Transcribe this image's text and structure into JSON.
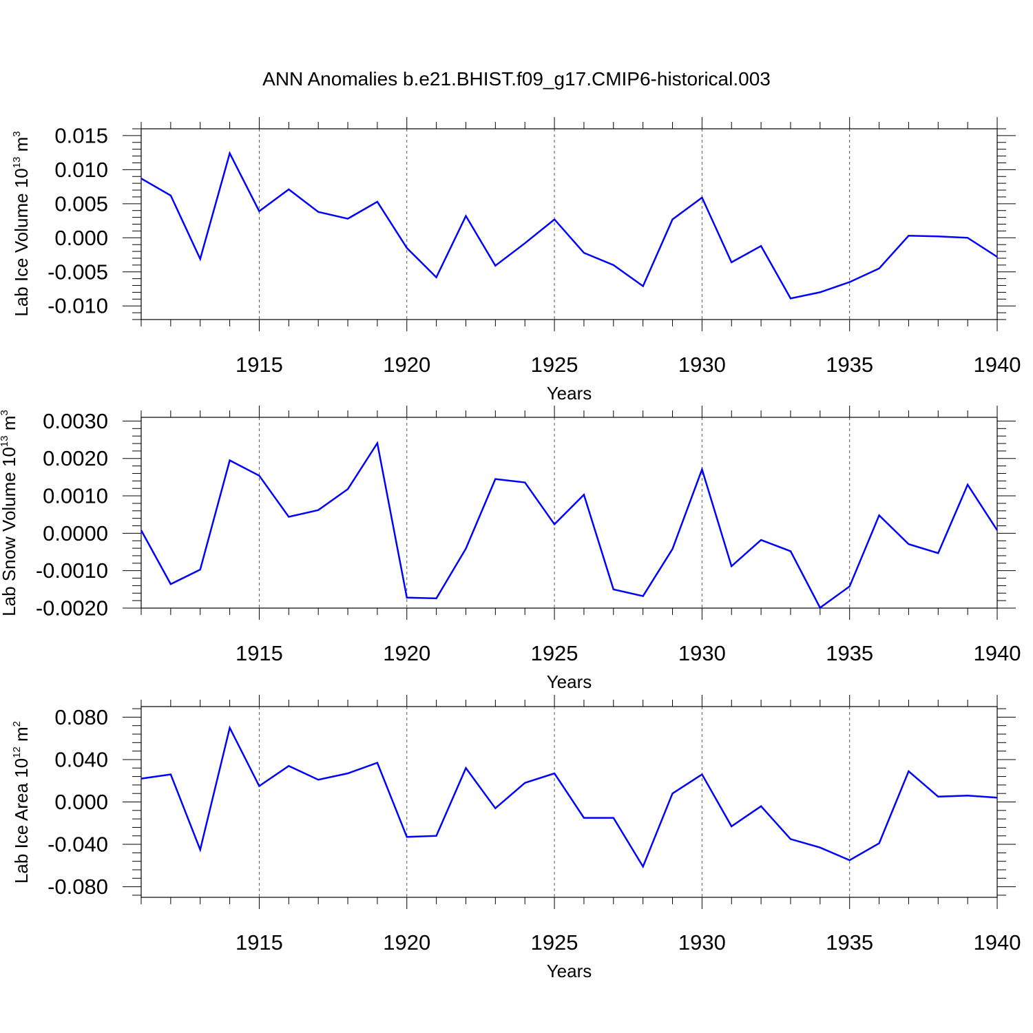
{
  "title": "ANN Anomalies b.e21.BHIST.f09_g17.CMIP6-historical.003",
  "line_color": "#0000ff",
  "chart_data": [
    {
      "type": "line",
      "ylabel": {
        "main": "Lab Ice Volume 10",
        "exp": "13",
        "unit": " m",
        "unit_exp": "3"
      },
      "xlabel": "Years",
      "xlim": [
        1911,
        1940
      ],
      "ylim": [
        -0.012,
        0.016
      ],
      "yticks": [
        0.015,
        0.01,
        0.005,
        0.0,
        -0.005,
        -0.01
      ],
      "ytick_labels": [
        "0.015",
        "0.010",
        "0.005",
        "0.000",
        "-0.005",
        "-0.010"
      ],
      "xticks": [
        1915,
        1920,
        1925,
        1930,
        1935,
        1940
      ],
      "xtick_labels": [
        "1915",
        "1920",
        "1925",
        "1930",
        "1935",
        "1940"
      ],
      "grid": "x dashed",
      "x": [
        1911,
        1912,
        1913,
        1914,
        1915,
        1916,
        1917,
        1918,
        1919,
        1920,
        1921,
        1922,
        1923,
        1924,
        1925,
        1926,
        1927,
        1928,
        1929,
        1930,
        1931,
        1932,
        1933,
        1934,
        1935,
        1936,
        1937,
        1938,
        1939,
        1940
      ],
      "series": [
        {
          "values": [
            0.0087,
            0.0062,
            -0.0031,
            0.0124,
            0.0039,
            0.0071,
            0.0038,
            0.0028,
            0.0053,
            -0.0015,
            -0.0058,
            0.0032,
            -0.0041,
            -0.0008,
            0.0027,
            -0.0022,
            -0.004,
            -0.0071,
            0.0027,
            0.0059,
            -0.0036,
            -0.0012,
            -0.0089,
            -0.008,
            -0.0065,
            -0.0045,
            0.0003,
            0.0002,
            0.0,
            -0.0028
          ]
        }
      ]
    },
    {
      "type": "line",
      "ylabel": {
        "main": "Lab Snow Volume 10",
        "exp": "13",
        "unit": " m",
        "unit_exp": "3"
      },
      "xlabel": "Years",
      "xlim": [
        1911,
        1940
      ],
      "ylim": [
        -0.002,
        0.0031
      ],
      "yticks": [
        0.003,
        0.002,
        0.001,
        0.0,
        -0.001,
        -0.002
      ],
      "ytick_labels": [
        "0.0030",
        "0.0020",
        "0.0010",
        "0.0000",
        "-0.0010",
        "-0.0020"
      ],
      "xticks": [
        1915,
        1920,
        1925,
        1930,
        1935,
        1940
      ],
      "xtick_labels": [
        "1915",
        "1920",
        "1925",
        "1930",
        "1935",
        "1940"
      ],
      "grid": "x dashed",
      "x": [
        1911,
        1912,
        1913,
        1914,
        1915,
        1916,
        1917,
        1918,
        1919,
        1920,
        1921,
        1922,
        1923,
        1924,
        1925,
        1926,
        1927,
        1928,
        1929,
        1930,
        1931,
        1932,
        1933,
        1934,
        1935,
        1936,
        1937,
        1938,
        1939,
        1940
      ],
      "series": [
        {
          "values": [
            8e-05,
            -0.00136,
            -0.00097,
            0.00195,
            0.00154,
            0.00044,
            0.00062,
            0.00118,
            0.00241,
            -0.00172,
            -0.00174,
            -0.00041,
            0.00145,
            0.00136,
            0.00024,
            0.00103,
            -0.0015,
            -0.00168,
            -0.00042,
            0.00171,
            -0.00088,
            -0.00018,
            -0.00048,
            -0.00199,
            -0.00142,
            0.00048,
            -0.00029,
            -0.00053,
            0.0013,
            8e-05
          ]
        }
      ]
    },
    {
      "type": "line",
      "ylabel": {
        "main": "Lab Ice Area 10",
        "exp": "12",
        "unit": " m",
        "unit_exp": "2"
      },
      "xlabel": "Years",
      "xlim": [
        1911,
        1940
      ],
      "ylim": [
        -0.09,
        0.09
      ],
      "yticks": [
        0.08,
        0.04,
        0.0,
        -0.04,
        -0.08
      ],
      "ytick_labels": [
        "0.080",
        "0.040",
        "0.000",
        "-0.040",
        "-0.080"
      ],
      "xticks": [
        1915,
        1920,
        1925,
        1930,
        1935,
        1940
      ],
      "xtick_labels": [
        "1915",
        "1920",
        "1925",
        "1930",
        "1935",
        "1940"
      ],
      "grid": "x dashed",
      "x": [
        1911,
        1912,
        1913,
        1914,
        1915,
        1916,
        1917,
        1918,
        1919,
        1920,
        1921,
        1922,
        1923,
        1924,
        1925,
        1926,
        1927,
        1928,
        1929,
        1930,
        1931,
        1932,
        1933,
        1934,
        1935,
        1936,
        1937,
        1938,
        1939,
        1940
      ],
      "series": [
        {
          "values": [
            0.022,
            0.026,
            -0.045,
            0.07,
            0.015,
            0.034,
            0.021,
            0.027,
            0.037,
            -0.033,
            -0.032,
            0.032,
            -0.006,
            0.018,
            0.027,
            -0.015,
            -0.015,
            -0.061,
            0.008,
            0.026,
            -0.023,
            -0.004,
            -0.035,
            -0.043,
            -0.055,
            -0.039,
            0.029,
            0.005,
            0.006,
            0.004
          ]
        }
      ]
    }
  ]
}
